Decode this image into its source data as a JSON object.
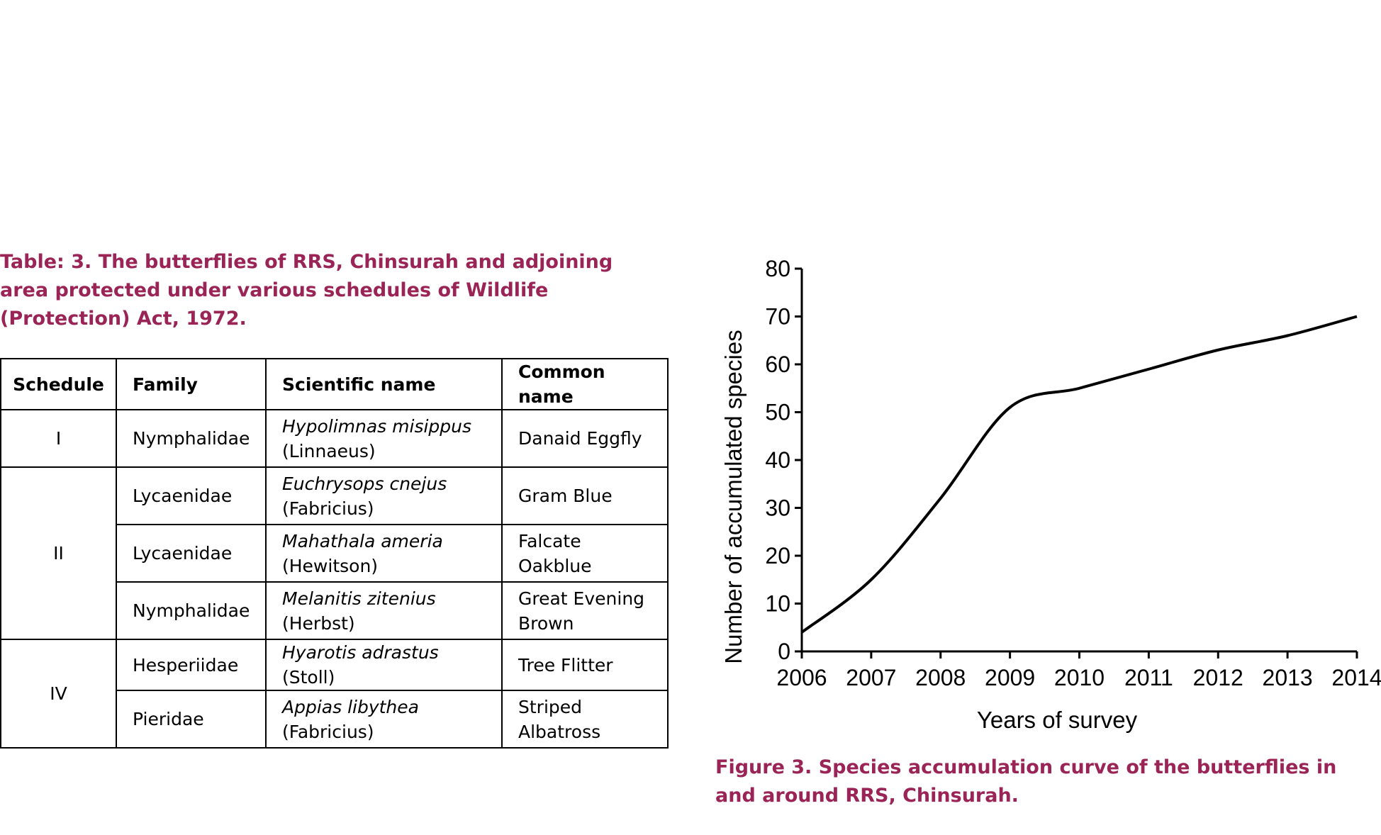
{
  "table_caption": "Table: 3. The butterflies of RRS, Chinsurah and adjoining area protected under various schedules of Wildlife (Protection) Act, 1972.",
  "table": {
    "headers": [
      "Schedule",
      "Family",
      "Scientific name",
      "Common name"
    ],
    "rows": [
      {
        "schedule": "I",
        "family": "Nymphalidae",
        "sci": "Hypolimnas misippus",
        "author": "(Linnaeus)",
        "common": "Danaid Eggfly"
      },
      {
        "schedule": "II",
        "family": "Lycaenidae",
        "sci": "Euchrysops cnejus",
        "author": "(Fabricius)",
        "common": "Gram Blue"
      },
      {
        "schedule": "",
        "family": "Lycaenidae",
        "sci": "Mahathala ameria",
        "author": "(Hewitson)",
        "common": "Falcate Oakblue"
      },
      {
        "schedule": "",
        "family": "Nymphalidae",
        "sci": "Melanitis zitenius",
        "author": "(Herbst)",
        "common": "Great Evening Brown"
      },
      {
        "schedule": "IV",
        "family": "Hesperiidae",
        "sci": "Hyarotis adrastus",
        "author": "(Stoll)",
        "common": "Tree Flitter"
      },
      {
        "schedule": "",
        "family": "Pieridae",
        "sci": "Appias libythea",
        "author": "(Fabricius)",
        "common": "Striped Albatross"
      }
    ]
  },
  "figure_caption": "Figure 3. Species accumulation curve of the butterflies in and around RRS, Chinsurah.",
  "chart_data": {
    "type": "line",
    "title": "",
    "xlabel": "Years of survey",
    "ylabel": "Number of accumulated species",
    "x": [
      2006,
      2007,
      2008,
      2009,
      2010,
      2011,
      2012,
      2013,
      2014
    ],
    "xticks": [
      "2006",
      "2007",
      "2008",
      "2009",
      "2010",
      "2011",
      "2012",
      "2013",
      "2014"
    ],
    "yticks": [
      "0",
      "10",
      "20",
      "30",
      "40",
      "50",
      "60",
      "70",
      "80"
    ],
    "series": [
      {
        "values": [
          4,
          15,
          32,
          51,
          55,
          59,
          63,
          66,
          70
        ]
      }
    ],
    "xlim": [
      2006,
      2014
    ],
    "ylim": [
      0,
      80
    ],
    "grid": false,
    "legend": "none",
    "line_color": "#000000"
  }
}
